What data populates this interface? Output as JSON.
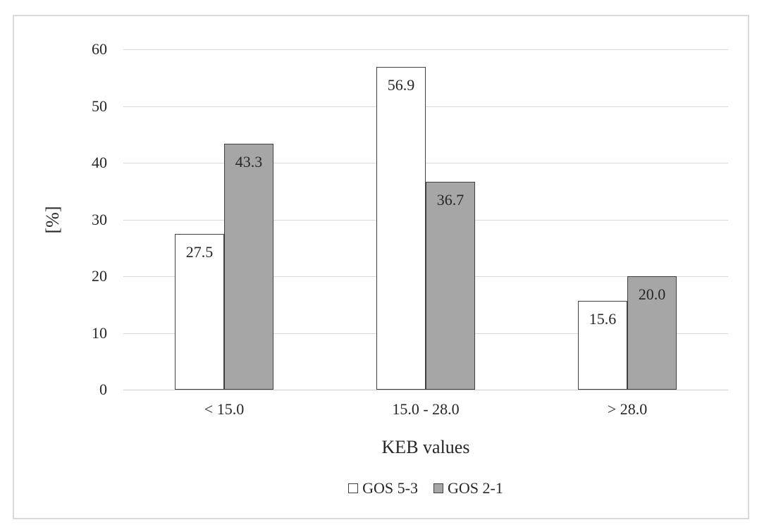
{
  "chart_data": {
    "type": "bar",
    "title": "",
    "categories": [
      "< 15.0",
      "15.0 - 28.0",
      "> 28.0"
    ],
    "series": [
      {
        "name": "GOS 5-3",
        "values": [
          27.5,
          56.9,
          15.6
        ],
        "fill": "#ffffff"
      },
      {
        "name": "GOS 2-1",
        "values": [
          43.3,
          36.7,
          20.0
        ],
        "fill": "#a6a6a6"
      }
    ],
    "xlabel": "KEB values",
    "ylabel": "[%]",
    "ylim": [
      0,
      60
    ],
    "yticks": [
      0,
      10,
      20,
      30,
      40,
      50,
      60
    ],
    "grid": true,
    "legend_position": "bottom-center",
    "value_labels": "inside-top",
    "value_label_decimals": 1,
    "colors": {
      "bar_border": "#404040",
      "gridline": "#d9d9d9",
      "axis_line": "#cfcfcf",
      "text": "#262626",
      "chart_border": "#d9d9d9",
      "background": "#ffffff"
    }
  }
}
